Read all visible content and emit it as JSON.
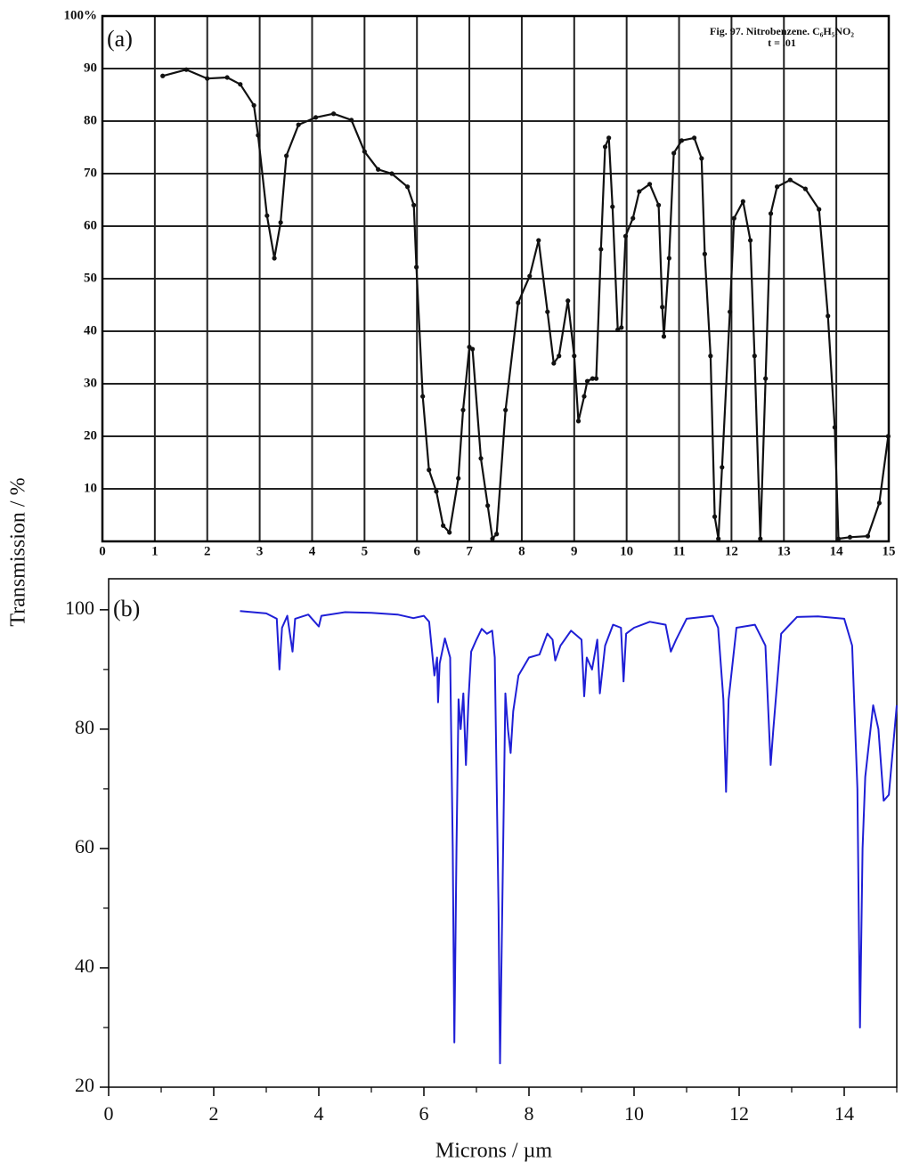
{
  "chart_data": [
    {
      "type": "line",
      "label": "(a)",
      "annotations": [
        "Fig. 97. Nitrobenzene. C₆H₅NO₂",
        "t = .01"
      ],
      "color": "#111111",
      "markers": true,
      "grid": true,
      "xlim": [
        0,
        15
      ],
      "ylim": [
        0,
        100
      ],
      "xticks": [
        0,
        1,
        2,
        3,
        4,
        5,
        6,
        7,
        8,
        9,
        10,
        11,
        12,
        13,
        14,
        15
      ],
      "yticks": [
        10,
        20,
        30,
        40,
        50,
        60,
        70,
        80,
        90,
        {
          "value": 100,
          "label": "100%"
        }
      ],
      "x": [
        1.15,
        1.6,
        2.0,
        2.38,
        2.63,
        2.89,
        2.97,
        3.14,
        3.28,
        3.4,
        3.51,
        3.74,
        4.07,
        4.41,
        4.75,
        5.0,
        5.26,
        5.52,
        5.82,
        5.94,
        5.99,
        6.11,
        6.23,
        6.37,
        6.5,
        6.62,
        6.79,
        6.88,
        7.0,
        7.06,
        7.22,
        7.35,
        7.44,
        7.52,
        7.69,
        7.93,
        8.15,
        8.32,
        8.49,
        8.61,
        8.71,
        8.88,
        9.0,
        9.08,
        9.19,
        9.25,
        9.35,
        9.42,
        9.51,
        9.59,
        9.66,
        9.73,
        9.83,
        9.9,
        9.98,
        10.12,
        10.24,
        10.44,
        10.61,
        10.68,
        10.71,
        10.81,
        10.9,
        11.05,
        11.29,
        11.43,
        11.49,
        11.6,
        11.68,
        11.75,
        11.82,
        11.97,
        12.05,
        12.22,
        12.36,
        12.44,
        12.55,
        12.65,
        12.75,
        12.87,
        13.12,
        13.41,
        13.67,
        13.84,
        13.97,
        14.04,
        14.26,
        14.6,
        14.82,
        14.99
      ],
      "values": [
        88.6,
        89.8,
        88.1,
        88.3,
        87,
        83,
        77.3,
        62,
        53.9,
        60.7,
        73.4,
        79.3,
        80.7,
        81.4,
        80.2,
        74.2,
        70.8,
        70,
        67.5,
        64,
        52.2,
        27.6,
        13.6,
        9.5,
        3,
        1.7,
        12,
        25,
        37,
        36.6,
        15.8,
        6.8,
        0.5,
        1.4,
        25,
        45.4,
        50.5,
        57.3,
        43.7,
        33.9,
        35.3,
        45.8,
        35.3,
        22.9,
        27.6,
        30.5,
        31,
        31,
        55.6,
        75.1,
        76.8,
        63.7,
        40.3,
        40.7,
        58.1,
        61.5,
        66.6,
        68,
        64,
        44.6,
        39,
        53.9,
        73.9,
        76.3,
        76.8,
        72.9,
        54.7,
        35.3,
        4.7,
        0.5,
        14.1,
        43.7,
        61.5,
        64.7,
        57.3,
        35.3,
        0.5,
        31,
        62.4,
        67.5,
        68.8,
        67.1,
        63.2,
        42.9,
        21.7,
        0.5,
        0.8,
        1,
        7.3,
        20
      ]
    },
    {
      "type": "line",
      "label": "(b)",
      "xlabel": "Microns / µm",
      "ylabel": "Transmission / %",
      "color": "#1f1fd6",
      "markers": false,
      "grid": false,
      "xlim": [
        0,
        15
      ],
      "ylim": [
        20,
        105.2
      ],
      "xticks": [
        0,
        2,
        4,
        6,
        8,
        10,
        12,
        14
      ],
      "xminor": [
        1,
        3,
        5,
        7,
        9,
        11,
        13,
        15
      ],
      "yticks": [
        20,
        40,
        60,
        80,
        100
      ],
      "yminor": [
        30,
        50,
        70,
        90
      ],
      "x": [
        2.5,
        3.0,
        3.2,
        3.25,
        3.3,
        3.4,
        3.5,
        3.55,
        3.8,
        4.0,
        4.05,
        4.5,
        5.0,
        5.5,
        5.8,
        6.0,
        6.1,
        6.2,
        6.25,
        6.27,
        6.3,
        6.4,
        6.5,
        6.55,
        6.58,
        6.62,
        6.66,
        6.7,
        6.75,
        6.8,
        6.85,
        6.9,
        7.0,
        7.1,
        7.2,
        7.3,
        7.35,
        7.42,
        7.45,
        7.5,
        7.55,
        7.6,
        7.65,
        7.7,
        7.8,
        8.0,
        8.2,
        8.35,
        8.45,
        8.5,
        8.6,
        8.8,
        9.0,
        9.05,
        9.1,
        9.2,
        9.3,
        9.35,
        9.45,
        9.6,
        9.75,
        9.8,
        9.85,
        10.0,
        10.3,
        10.6,
        10.7,
        10.8,
        11.0,
        11.5,
        11.6,
        11.7,
        11.75,
        11.8,
        11.95,
        12.3,
        12.5,
        12.6,
        12.65,
        12.8,
        13.1,
        13.5,
        14.0,
        14.15,
        14.25,
        14.3,
        14.35,
        14.4,
        14.55,
        14.65,
        14.75,
        14.85,
        15.0
      ],
      "values": [
        99.8,
        99.4,
        98.5,
        90,
        97,
        99,
        93,
        98.5,
        99.2,
        97.2,
        99,
        99.6,
        99.5,
        99.2,
        98.6,
        99,
        98,
        89,
        92,
        84.5,
        91,
        95.2,
        92,
        60,
        27.5,
        60,
        85,
        80,
        86,
        74,
        85,
        93,
        95,
        96.8,
        96,
        96.5,
        92,
        50,
        24,
        55,
        86,
        80,
        76,
        83,
        89,
        92,
        92.5,
        96,
        95,
        91.5,
        94,
        96.5,
        95,
        85.5,
        92,
        90,
        95,
        86,
        94,
        97.5,
        97,
        88,
        96,
        97,
        98,
        97.5,
        93,
        95,
        98.5,
        99,
        97,
        85,
        69.5,
        85,
        97,
        97.5,
        94,
        74,
        80,
        96,
        98.8,
        98.9,
        98.5,
        94,
        70,
        30,
        60,
        72,
        84,
        80,
        68,
        69,
        84
      ]
    }
  ]
}
